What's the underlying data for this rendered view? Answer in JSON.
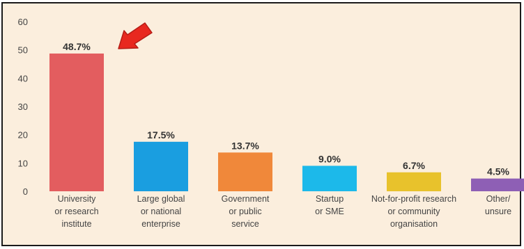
{
  "chart_data": {
    "type": "bar",
    "title": "",
    "xlabel": "",
    "ylabel": "",
    "ylim": [
      0,
      60
    ],
    "yticks": [
      0,
      10,
      20,
      30,
      40,
      50,
      60
    ],
    "grid": false,
    "legend": "none",
    "categories": [
      [
        "University",
        "or research",
        "institute"
      ],
      [
        "Large global",
        "or national",
        "enterprise"
      ],
      [
        "Government",
        "or public",
        "service"
      ],
      [
        "Startup",
        "or SME"
      ],
      [
        "Not-for-profit research",
        "or community",
        "organisation"
      ],
      [
        "Other/",
        "unsure"
      ]
    ],
    "values": [
      48.7,
      17.5,
      13.7,
      9.0,
      6.7,
      4.5
    ],
    "data_labels": [
      "48.7%",
      "17.5%",
      "13.7%",
      "9.0%",
      "6.7%",
      "4.5%"
    ],
    "colors": [
      "#e35d5f",
      "#1a9ee0",
      "#f0883a",
      "#1cb9ea",
      "#e8c22c",
      "#8e5fb5"
    ],
    "annotation": {
      "type": "arrow",
      "points_to_category_index": 0,
      "color": "#e8281f"
    }
  }
}
